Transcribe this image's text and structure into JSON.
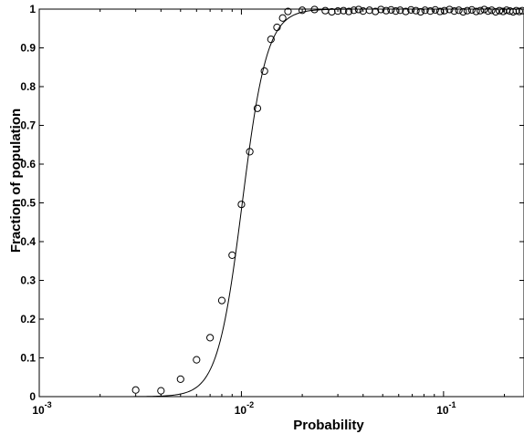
{
  "chart_data": {
    "type": "scatter",
    "title": "",
    "xlabel": "Probability",
    "ylabel": "Fraction of population",
    "xscale": "log",
    "xlim": [
      0.001,
      0.25
    ],
    "ylim": [
      0,
      1
    ],
    "grid": false,
    "x_ticks": [
      {
        "value": 0.001,
        "base": "10",
        "exp": "-3"
      },
      {
        "value": 0.01,
        "base": "10",
        "exp": "-2"
      },
      {
        "value": 0.1,
        "base": "10",
        "exp": "-1"
      }
    ],
    "y_ticks": [
      {
        "value": 0,
        "label": "0"
      },
      {
        "value": 0.1,
        "label": "0.1"
      },
      {
        "value": 0.2,
        "label": "0.2"
      },
      {
        "value": 0.3,
        "label": "0.3"
      },
      {
        "value": 0.4,
        "label": "0.4"
      },
      {
        "value": 0.5,
        "label": "0.5"
      },
      {
        "value": 0.6,
        "label": "0.6"
      },
      {
        "value": 0.7,
        "label": "0.7"
      },
      {
        "value": 0.8,
        "label": "0.8"
      },
      {
        "value": 0.9,
        "label": "0.9"
      },
      {
        "value": 1,
        "label": "1"
      }
    ],
    "series": [
      {
        "marker": "circle",
        "points": [
          [
            0.003,
            0.017
          ],
          [
            0.004,
            0.015
          ],
          [
            0.005,
            0.045
          ],
          [
            0.006,
            0.095
          ],
          [
            0.007,
            0.152
          ],
          [
            0.008,
            0.248
          ],
          [
            0.009,
            0.365
          ],
          [
            0.01,
            0.496
          ],
          [
            0.011,
            0.632
          ],
          [
            0.012,
            0.744
          ],
          [
            0.013,
            0.84
          ],
          [
            0.014,
            0.922
          ],
          [
            0.015,
            0.953
          ],
          [
            0.016,
            0.977
          ],
          [
            0.017,
            0.994
          ],
          [
            0.02,
            0.997
          ],
          [
            0.023,
            0.999
          ],
          [
            0.026,
            0.996
          ],
          [
            0.028,
            0.993
          ],
          [
            0.03,
            0.995
          ],
          [
            0.032,
            0.996
          ],
          [
            0.034,
            0.994
          ],
          [
            0.036,
            0.997
          ],
          [
            0.038,
            0.999
          ],
          [
            0.04,
            0.995
          ],
          [
            0.043,
            0.997
          ],
          [
            0.046,
            0.994
          ],
          [
            0.049,
            0.999
          ],
          [
            0.052,
            0.996
          ],
          [
            0.055,
            0.998
          ],
          [
            0.058,
            0.995
          ],
          [
            0.061,
            0.997
          ],
          [
            0.065,
            0.994
          ],
          [
            0.069,
            0.998
          ],
          [
            0.073,
            0.996
          ],
          [
            0.077,
            0.993
          ],
          [
            0.081,
            0.997
          ],
          [
            0.086,
            0.995
          ],
          [
            0.091,
            0.998
          ],
          [
            0.096,
            0.994
          ],
          [
            0.101,
            0.996
          ],
          [
            0.107,
            0.999
          ],
          [
            0.113,
            0.995
          ],
          [
            0.119,
            0.997
          ],
          [
            0.125,
            0.993
          ],
          [
            0.131,
            0.996
          ],
          [
            0.138,
            0.998
          ],
          [
            0.145,
            0.994
          ],
          [
            0.152,
            0.996
          ],
          [
            0.159,
            0.999
          ],
          [
            0.166,
            0.995
          ],
          [
            0.173,
            0.997
          ],
          [
            0.181,
            0.993
          ],
          [
            0.189,
            0.996
          ],
          [
            0.197,
            0.994
          ],
          [
            0.205,
            0.997
          ],
          [
            0.213,
            0.995
          ],
          [
            0.221,
            0.993
          ],
          [
            0.229,
            0.996
          ],
          [
            0.237,
            0.994
          ],
          [
            0.245,
            0.996
          ]
        ]
      },
      {
        "marker": "line",
        "fit": {
          "midpoint": 0.0101,
          "steepness": 7.1
        }
      }
    ]
  }
}
